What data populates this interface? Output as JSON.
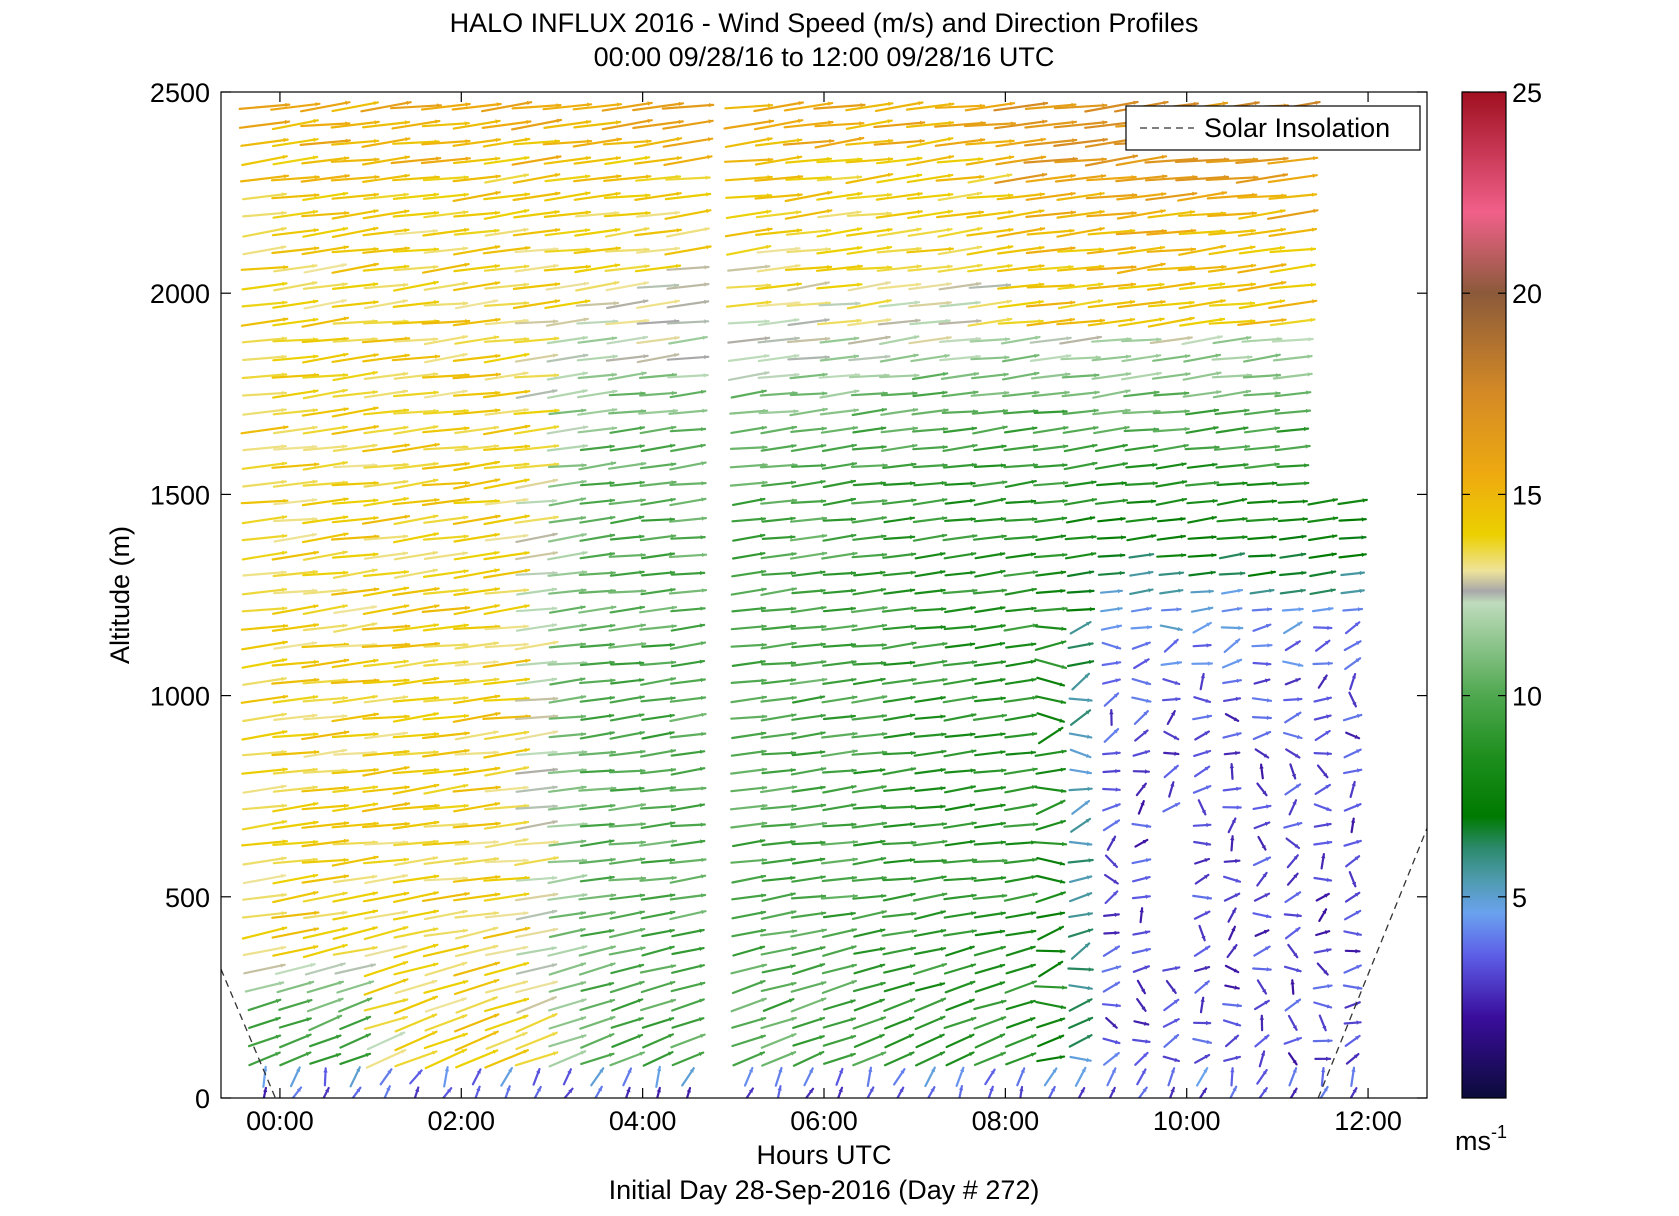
{
  "chart_data": {
    "type": "quiver",
    "title": "HALO INFLUX 2016 - Wind Speed (m/s) and Direction Profiles",
    "subtitle": "00:00 09/28/16 to 12:00 09/28/16  UTC",
    "xlabel": "Hours UTC",
    "xlabel2": "Initial Day 28-Sep-2016 (Day # 272)",
    "ylabel": "Altitude (m)",
    "xlim": [
      -0.65,
      12.65
    ],
    "ylim": [
      0,
      2500
    ],
    "x_ticks": [
      "00:00",
      "02:00",
      "04:00",
      "06:00",
      "08:00",
      "10:00",
      "12:00"
    ],
    "x_tick_values": [
      0,
      2,
      4,
      6,
      8,
      10,
      12
    ],
    "y_ticks": [
      "0",
      "500",
      "1000",
      "1500",
      "2000",
      "2500"
    ],
    "y_tick_values": [
      0,
      500,
      1000,
      1500,
      2000,
      2500
    ],
    "legend": {
      "entries": [
        "Solar Insolation"
      ],
      "placement": "top-right"
    },
    "colorbar": {
      "min": 0,
      "max": 25,
      "ticks": [
        "5",
        "10",
        "15",
        "20",
        "25"
      ],
      "tick_values": [
        5,
        10,
        15,
        20,
        25
      ],
      "unit_label": "ms",
      "unit_exponent": "-1",
      "stops": [
        {
          "v": 0,
          "c": "#0b0b3a"
        },
        {
          "v": 2,
          "c": "#3a0d9c"
        },
        {
          "v": 3.5,
          "c": "#5c5ce6"
        },
        {
          "v": 4.6,
          "c": "#6aa2ef"
        },
        {
          "v": 5.4,
          "c": "#4f9bb0"
        },
        {
          "v": 6.2,
          "c": "#2d8a6e"
        },
        {
          "v": 7,
          "c": "#007a00"
        },
        {
          "v": 8.5,
          "c": "#1e8f1e"
        },
        {
          "v": 10,
          "c": "#4fa84f"
        },
        {
          "v": 11.5,
          "c": "#97c996"
        },
        {
          "v": 12.3,
          "c": "#bfdcbc"
        },
        {
          "v": 12.6,
          "c": "#a8a8a8"
        },
        {
          "v": 13.1,
          "c": "#eee39a"
        },
        {
          "v": 14,
          "c": "#ecd000"
        },
        {
          "v": 15.5,
          "c": "#eeaa10"
        },
        {
          "v": 17.5,
          "c": "#d58a25"
        },
        {
          "v": 20,
          "c": "#8b5a3a"
        },
        {
          "v": 22,
          "c": "#f0608a"
        },
        {
          "v": 25,
          "c": "#a01020"
        }
      ]
    },
    "solar_insolation": {
      "segments": [
        {
          "x": [
            -0.65,
            -0.05
          ],
          "y": [
            320,
            0
          ]
        },
        {
          "x": [
            11.45,
            12.65
          ],
          "y": [
            0,
            670
          ]
        }
      ]
    },
    "profile_times_hours": [
      -0.17,
      0.17,
      0.5,
      0.83,
      1.17,
      1.5,
      1.83,
      2.17,
      2.5,
      2.83,
      3.17,
      3.5,
      3.83,
      4.17,
      4.5,
      5.17,
      5.5,
      5.83,
      6.17,
      6.5,
      6.83,
      7.17,
      7.5,
      7.83,
      8.17,
      8.5,
      8.83,
      9.17,
      9.5,
      9.83,
      10.17,
      10.5,
      10.83,
      11.17,
      11.5,
      11.83
    ],
    "data_gap_hours": [
      4.83
    ],
    "wind_field_summary": [
      {
        "altitude_range_m": [
          0,
          100
        ],
        "time_range": "00:00-12:00",
        "speed_ms": "2-5",
        "direction": "southerly, near vertical arrows"
      },
      {
        "altitude_range_m": [
          100,
          500
        ],
        "time_range": "00:00-01:00",
        "speed_ms": "8-10",
        "direction": "south-westerly"
      },
      {
        "altitude_range_m": [
          300,
          500
        ],
        "time_range": "01:00-03:00",
        "speed_ms": "13-15",
        "direction": "south-westerly"
      },
      {
        "altitude_range_m": [
          500,
          2500
        ],
        "time_range": "00:00-03:00",
        "speed_ms": "13-16",
        "direction": "westerly"
      },
      {
        "altitude_range_m": [
          100,
          1500
        ],
        "time_range": "03:00-08:00",
        "speed_ms": "8-12",
        "direction": "westerly"
      },
      {
        "altitude_range_m": [
          1500,
          2500
        ],
        "time_range": "03:00-08:00",
        "speed_ms": "10-15",
        "direction": "westerly"
      },
      {
        "altitude_range_m": [
          2000,
          2500
        ],
        "time_range": "08:00-12:00",
        "speed_ms": "14-17",
        "direction": "west-south-westerly"
      },
      {
        "altitude_range_m": [
          100,
          1000
        ],
        "time_range": "08:30-11:45",
        "speed_ms": "1-5",
        "direction": "variable, south-westerly to westerly"
      },
      {
        "altitude_range_m": [
          1000,
          1500
        ],
        "time_range": "09:30-11:45",
        "speed_ms": "3-6",
        "direction": "south-westerly"
      }
    ]
  }
}
